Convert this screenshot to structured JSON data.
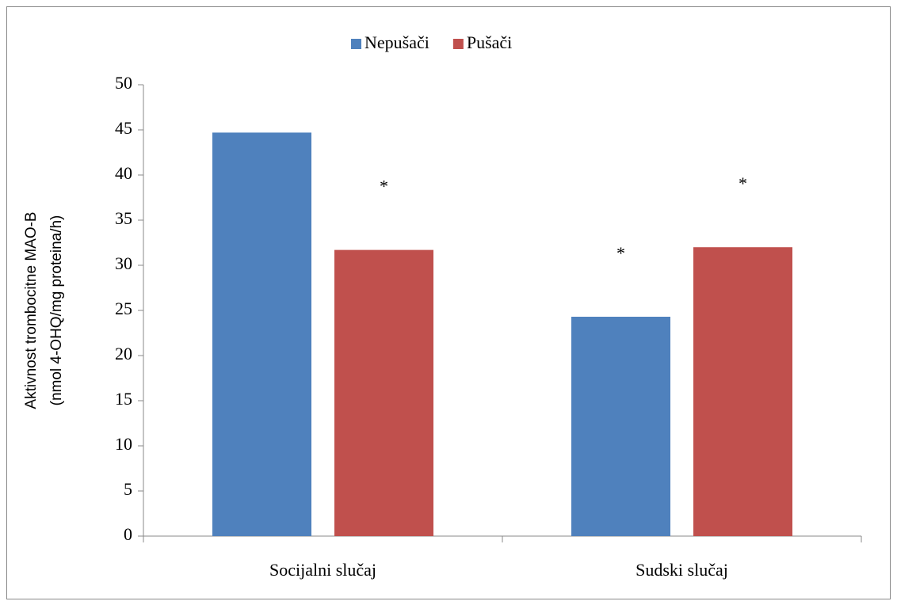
{
  "chart_data": {
    "type": "bar",
    "categories": [
      "Socijalni slučaj",
      "Sudski slučaj"
    ],
    "series": [
      {
        "name": "Nepušači",
        "color": "#4f81bd",
        "values": [
          44.7,
          24.3
        ],
        "annotations": [
          null,
          "*"
        ]
      },
      {
        "name": "Pušači",
        "color": "#c0504d",
        "values": [
          31.7,
          32.0
        ],
        "annotations": [
          "*",
          "*"
        ]
      }
    ],
    "ylabel": [
      "Aktivnost trombocitne MAO-B",
      "(nmol 4-OHQ/mg proteina/h)"
    ],
    "ylim": [
      0,
      50
    ],
    "yticks": [
      0,
      5,
      10,
      15,
      20,
      25,
      30,
      35,
      40,
      45,
      50
    ],
    "legend": "top"
  }
}
